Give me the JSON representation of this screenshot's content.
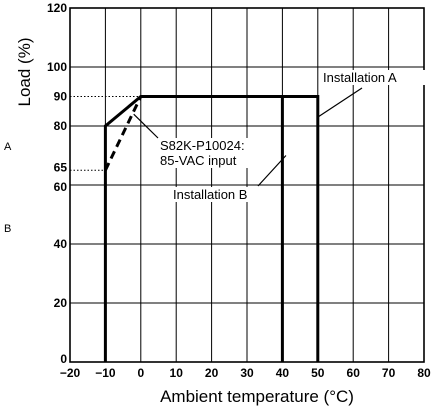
{
  "chart_data": {
    "type": "line",
    "title": "",
    "xlabel": "Ambient temperature (°C)",
    "ylabel": "Load (%)",
    "xlim": [
      -20,
      80
    ],
    "ylim": [
      0,
      120
    ],
    "x_ticks": [
      -20,
      -10,
      0,
      10,
      20,
      30,
      40,
      50,
      60,
      70,
      80
    ],
    "x_tick_labels": [
      "−20",
      "−10",
      "0",
      "10",
      "20",
      "30",
      "40",
      "50",
      "60",
      "70",
      "80"
    ],
    "y_ticks": [
      0,
      20,
      40,
      60,
      65,
      80,
      90,
      100,
      120
    ],
    "y_tick_labels": [
      "0",
      "20",
      "40",
      "60",
      "65",
      "80",
      "90",
      "100",
      "120"
    ],
    "grid": true,
    "series": [
      {
        "style": "solid-thick",
        "points": [
          [
            -10,
            0
          ],
          [
            -10,
            80
          ],
          [
            0,
            90
          ],
          [
            50,
            90
          ],
          [
            50,
            0
          ]
        ]
      },
      {
        "style": "solid-thick",
        "points": [
          [
            40,
            90
          ],
          [
            40,
            0
          ]
        ]
      },
      {
        "style": "dashed-thick",
        "points": [
          [
            -10,
            65
          ],
          [
            0,
            90
          ]
        ]
      }
    ],
    "reference_lines": [
      {
        "style": "dotted",
        "y": 90,
        "x_to": 0
      },
      {
        "style": "dotted",
        "y": 65,
        "x_to": -10
      }
    ],
    "annotations": [
      {
        "lines": [
          "Installation A"
        ],
        "target": [
          50,
          83
        ]
      },
      {
        "lines": [
          "Installation B"
        ],
        "target": [
          41,
          70
        ]
      },
      {
        "lines": [
          "S82K-P10024:",
          "85-VAC input"
        ],
        "target": [
          -2,
          84
        ]
      }
    ],
    "side_labels": [
      "A",
      "B"
    ]
  }
}
